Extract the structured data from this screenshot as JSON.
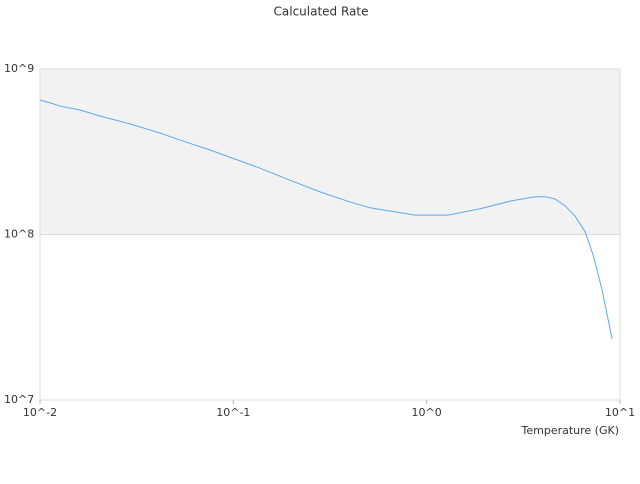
{
  "chart_data": {
    "type": "line",
    "title": "Calculated Rate",
    "x_label": "Temperature (GK)",
    "log_x": true,
    "log_y": true,
    "grid": true,
    "band_fill": "#f2f2f2",
    "xlim": [
      0.01,
      10
    ],
    "ylim": [
      10000000,
      1000000000
    ],
    "xticks": [
      {
        "value": 0.01,
        "label": "10^-2"
      },
      {
        "value": 0.1,
        "label": "10^-1"
      },
      {
        "value": 1,
        "label": "10^0"
      },
      {
        "value": 10,
        "label": "10^1"
      }
    ],
    "yticks": [
      {
        "value": 10000000,
        "label": "10^7"
      },
      {
        "value": 100000000,
        "label": "10^8"
      },
      {
        "value": 1000000000,
        "label": "10^9"
      }
    ],
    "x": [
      0.01,
      0.0113,
      0.0127,
      0.0161,
      0.0204,
      0.0292,
      0.0418,
      0.053,
      0.0757,
      0.0984,
      0.137,
      0.196,
      0.281,
      0.402,
      0.509,
      0.687,
      0.871,
      1.29,
      1.89,
      2.7,
      3.64,
      4.1,
      4.61,
      5.2,
      5.86,
      6.6,
      7.26,
      8.08,
      9.1
    ],
    "series": [
      {
        "color": "#5ea8f0",
        "values": [
          650000000,
          624000000,
          597000000,
          565000000,
          520000000,
          466000000,
          410000000,
          372000000,
          324000000,
          290000000,
          252000000,
          213000000,
          181000000,
          157000000,
          145000000,
          137000000,
          131000000,
          131000000,
          143000000,
          159000000,
          169000000,
          169000000,
          164000000,
          149000000,
          129000000,
          104000000,
          75200000,
          46200000,
          23400000
        ]
      }
    ]
  }
}
